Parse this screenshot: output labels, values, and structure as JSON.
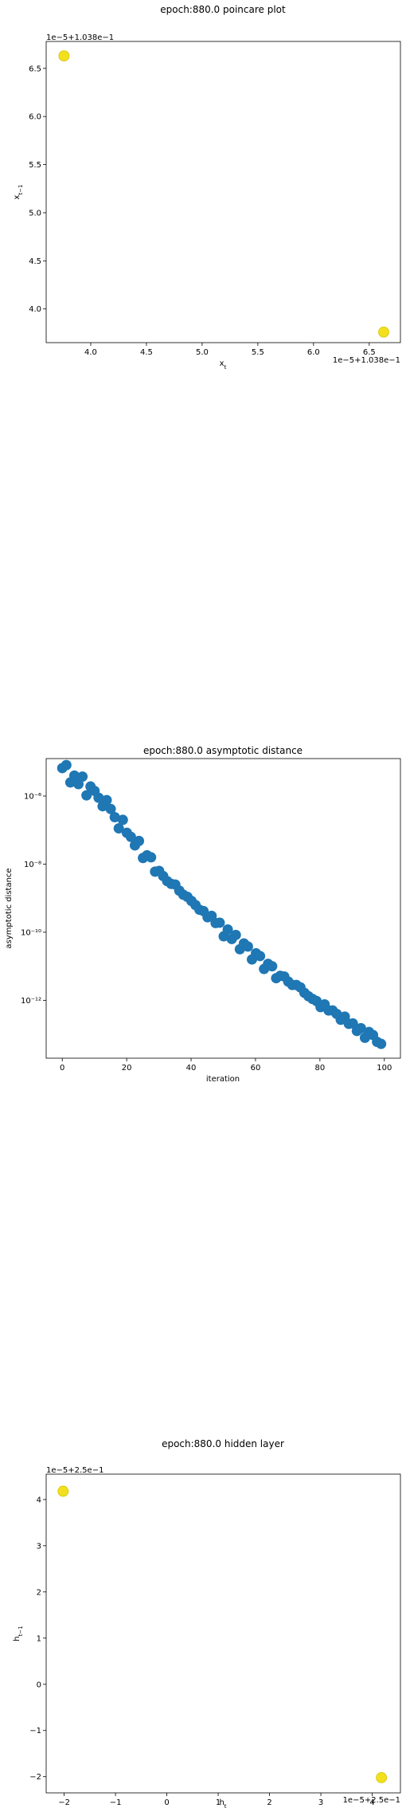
{
  "chart_data": [
    {
      "type": "scatter",
      "title": "epoch:880.0 poincare plot",
      "xlabel": "x_t",
      "ylabel": "x_{t-1}",
      "x_offset_text": "1e−5+1.038e−1",
      "y_offset_text": "1e−5+1.038e−1",
      "xlim": [
        3.6,
        6.78
      ],
      "ylim": [
        3.65,
        6.78
      ],
      "xticks": [
        4.0,
        4.5,
        5.0,
        5.5,
        6.0,
        6.5
      ],
      "xtick_labels": [
        "4.0",
        "4.5",
        "5.0",
        "5.5",
        "6.0",
        "6.5"
      ],
      "yticks": [
        4.0,
        4.5,
        5.0,
        5.5,
        6.0,
        6.5
      ],
      "ytick_labels": [
        "4.0",
        "4.5",
        "5.0",
        "5.5",
        "6.0",
        "6.5"
      ],
      "points": [
        {
          "x": 3.76,
          "y": 6.63
        },
        {
          "x": 6.63,
          "y": 3.76
        }
      ],
      "point_color": "#f2e01e",
      "grid": false
    },
    {
      "type": "scatter",
      "title": "epoch:880.0 asymptotic distance",
      "xlabel": "iteration",
      "ylabel": "asymptotic distance",
      "yscale": "log",
      "xlim": [
        -5,
        105
      ],
      "ylim_log10": [
        -13.7,
        -4.9
      ],
      "xticks": [
        0,
        20,
        40,
        60,
        80,
        100
      ],
      "xtick_labels": [
        "0",
        "20",
        "40",
        "60",
        "80",
        "100"
      ],
      "yticks_log10": [
        -6,
        -8,
        -10,
        -12
      ],
      "ytick_labels": [
        "10⁻⁶",
        "10⁻⁸",
        "10⁻¹⁰",
        "10⁻¹²"
      ],
      "point_color": "#1f77b4",
      "log10_values": [
        -5.18,
        -5.09,
        -5.6,
        -5.4,
        -5.65,
        -5.43,
        -5.98,
        -5.72,
        -5.85,
        -6.05,
        -6.3,
        -6.12,
        -6.38,
        -6.62,
        -6.95,
        -6.7,
        -7.08,
        -7.2,
        -7.45,
        -7.32,
        -7.82,
        -7.74,
        -7.8,
        -8.22,
        -8.2,
        -8.35,
        -8.5,
        -8.58,
        -8.6,
        -8.78,
        -8.9,
        -8.96,
        -9.08,
        -9.2,
        -9.34,
        -9.38,
        -9.56,
        -9.52,
        -9.73,
        -9.72,
        -10.12,
        -9.92,
        -10.2,
        -10.08,
        -10.5,
        -10.33,
        -10.42,
        -10.8,
        -10.62,
        -10.7,
        -11.08,
        -10.93,
        -11.0,
        -11.35,
        -11.28,
        -11.3,
        -11.45,
        -11.55,
        -11.55,
        -11.62,
        -11.78,
        -11.88,
        -11.96,
        -12.02,
        -12.2,
        -12.12,
        -12.3,
        -12.3,
        -12.4,
        -12.57,
        -12.48,
        -12.69,
        -12.68,
        -12.9,
        -12.82,
        -13.1,
        -12.93,
        -13.02,
        -13.22,
        -13.28
      ]
    },
    {
      "type": "scatter",
      "title": "epoch:880.0 hidden layer",
      "xlabel": "h_t",
      "ylabel": "h_{t-1}",
      "x_offset_text": "1e−5+2.5e−1",
      "y_offset_text": "1e−5+2.5e−1",
      "xlim": [
        -2.35,
        4.55
      ],
      "ylim": [
        -2.35,
        4.55
      ],
      "xticks": [
        -2,
        -1,
        0,
        1,
        2,
        3,
        4
      ],
      "xtick_labels": [
        "−2",
        "−1",
        "0",
        "1",
        "2",
        "3",
        "4"
      ],
      "yticks": [
        -2,
        -1,
        0,
        1,
        2,
        3,
        4
      ],
      "ytick_labels": [
        "−2",
        "−1",
        "0",
        "1",
        "2",
        "3",
        "4"
      ],
      "points": [
        {
          "x": -2.02,
          "y": 4.18
        },
        {
          "x": 4.18,
          "y": -2.02
        }
      ],
      "point_color": "#f2e01e",
      "grid": false
    }
  ]
}
